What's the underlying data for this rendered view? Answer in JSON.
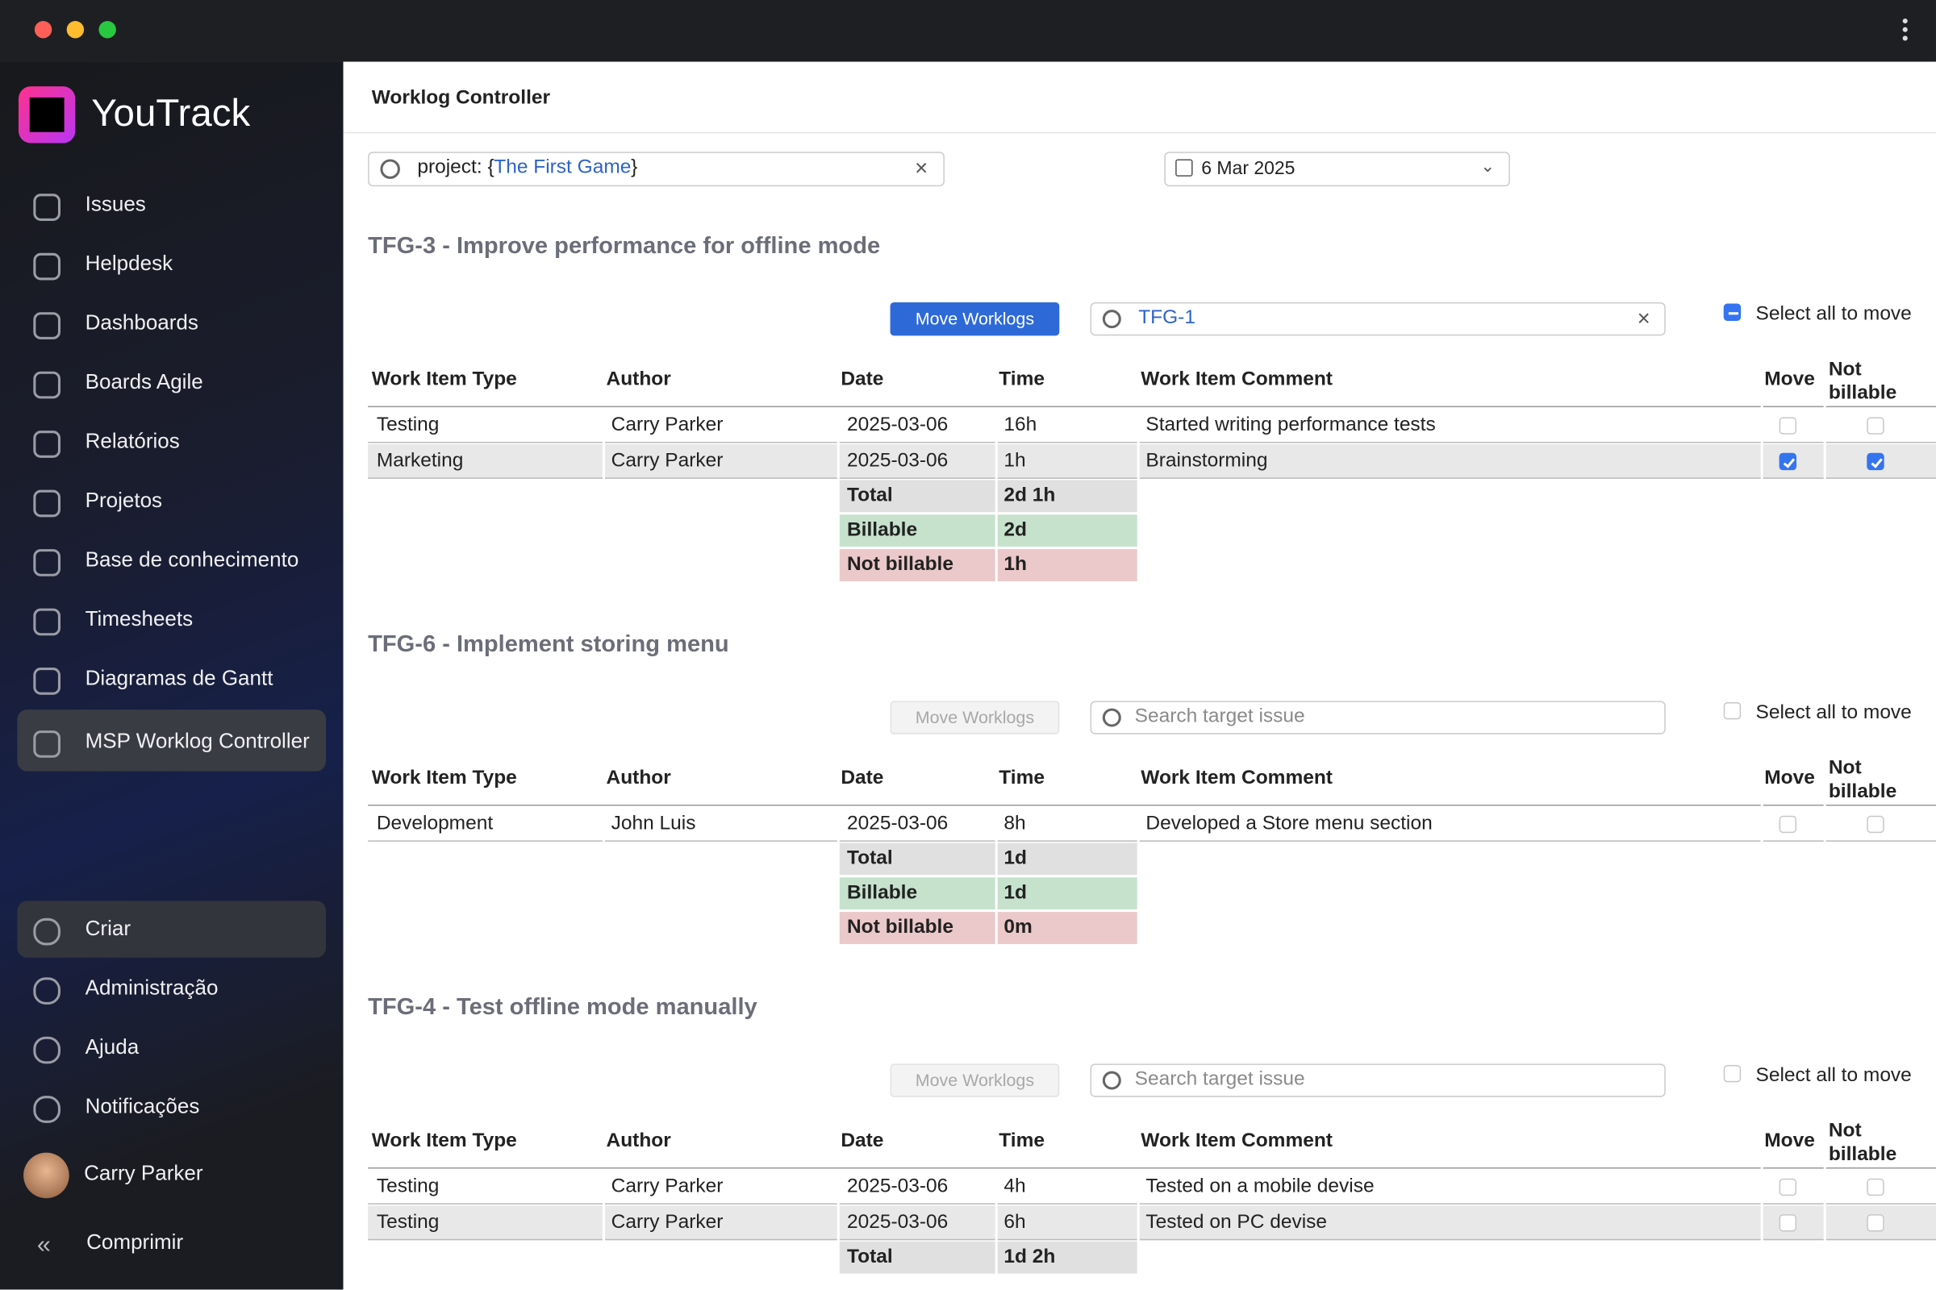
{
  "sidebar": {
    "brand": "YouTrack",
    "nav": [
      "Issues",
      "Helpdesk",
      "Dashboards",
      "Boards Agile",
      "Relatórios",
      "Projetos",
      "Base de conhecimento",
      "Timesheets",
      "Diagramas de Gantt",
      "MSP Worklog Controller"
    ],
    "active": 9,
    "bottom": [
      "Criar",
      "Administração",
      "Ajuda",
      "Notificações"
    ],
    "user": "Carry Parker",
    "collapse": "Comprimir"
  },
  "header": {
    "title": "Worklog Controller"
  },
  "filter": {
    "query_prefix": "project: {",
    "query_project": "The First Game",
    "query_suffix": "}",
    "date": "6 Mar 2025"
  },
  "table_columns": [
    "Work Item Type",
    "Author",
    "Date",
    "Time",
    "Work Item Comment",
    "Move",
    "Not billable"
  ],
  "sections": [
    {
      "title": "TFG-3 - Improve performance for offline mode",
      "button": "Move Worklogs",
      "button_enabled": true,
      "search_value": "TFG-1",
      "select_all": "Select all to move",
      "select_all_state": "partial",
      "rows": [
        {
          "cells": [
            "Testing",
            "Carry Parker",
            "2025-03-06",
            "16h",
            "Started writing performance tests"
          ],
          "move": false,
          "not_billable": false
        },
        {
          "cells": [
            "Marketing",
            "Carry Parker",
            "2025-03-06",
            "1h",
            "Brainstorming"
          ],
          "move": true,
          "not_billable": true
        }
      ],
      "totals": [
        [
          "Total",
          "2d 1h"
        ],
        [
          "Billable",
          "2d"
        ],
        [
          "Not billable",
          "1h"
        ]
      ]
    },
    {
      "title": "TFG-6 - Implement storing menu",
      "button": "Move Worklogs",
      "button_enabled": false,
      "search_placeholder": "Search target issue",
      "select_all": "Select all to move",
      "select_all_state": "none",
      "rows": [
        {
          "cells": [
            "Development",
            "John Luis",
            "2025-03-06",
            "8h",
            "Developed a Store menu section"
          ],
          "move": false,
          "not_billable": false
        }
      ],
      "totals": [
        [
          "Total",
          "1d"
        ],
        [
          "Billable",
          "1d"
        ],
        [
          "Not billable",
          "0m"
        ]
      ]
    },
    {
      "title": "TFG-4 - Test offline mode manually",
      "button": "Move Worklogs",
      "button_enabled": false,
      "search_placeholder": "Search target issue",
      "select_all": "Select all to move",
      "select_all_state": "none",
      "rows": [
        {
          "cells": [
            "Testing",
            "Carry Parker",
            "2025-03-06",
            "4h",
            "Tested on a mobile devise"
          ],
          "move": false,
          "not_billable": false
        },
        {
          "cells": [
            "Testing",
            "Carry Parker",
            "2025-03-06",
            "6h",
            "Tested on PC devise"
          ],
          "move": false,
          "not_billable": false
        }
      ],
      "totals": [
        [
          "Total",
          "1d 2h"
        ]
      ]
    }
  ]
}
